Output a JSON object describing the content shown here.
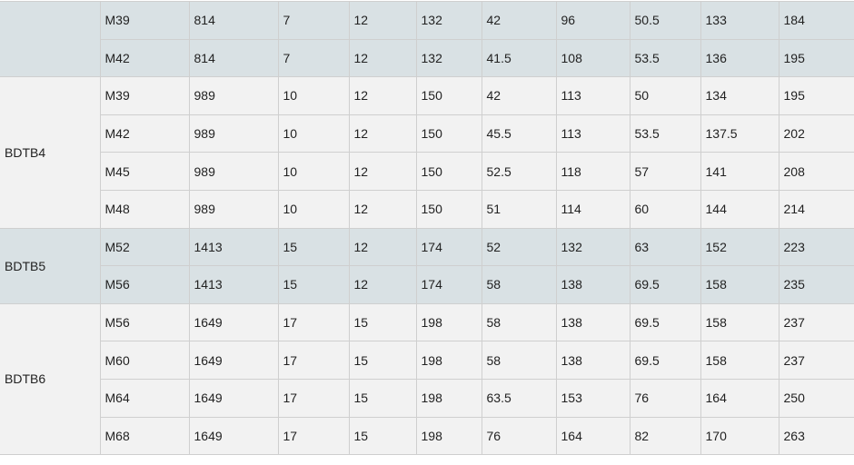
{
  "colors": {
    "shaded_row": "#d9e1e4",
    "light_row": "#f2f2f2",
    "border": "#cfcfcf"
  },
  "table": {
    "groups": [
      {
        "label": "",
        "shaded": true,
        "rows": [
          [
            "M39",
            "814",
            "7",
            "12",
            "132",
            "42",
            "96",
            "50.5",
            "133",
            "184"
          ],
          [
            "M42",
            "814",
            "7",
            "12",
            "132",
            "41.5",
            "108",
            "53.5",
            "136",
            "195"
          ]
        ]
      },
      {
        "label": "BDTB4",
        "shaded": false,
        "rows": [
          [
            "M39",
            "989",
            "10",
            "12",
            "150",
            "42",
            "113",
            "50",
            "134",
            "195"
          ],
          [
            "M42",
            "989",
            "10",
            "12",
            "150",
            "45.5",
            "113",
            "53.5",
            "137.5",
            "202"
          ],
          [
            "M45",
            "989",
            "10",
            "12",
            "150",
            "52.5",
            "118",
            "57",
            "141",
            "208"
          ],
          [
            "M48",
            "989",
            "10",
            "12",
            "150",
            "51",
            "114",
            "60",
            "144",
            "214"
          ]
        ]
      },
      {
        "label": "BDTB5",
        "shaded": true,
        "rows": [
          [
            "M52",
            "1413",
            "15",
            "12",
            "174",
            "52",
            "132",
            "63",
            "152",
            "223"
          ],
          [
            "M56",
            "1413",
            "15",
            "12",
            "174",
            "58",
            "138",
            "69.5",
            "158",
            "235"
          ]
        ]
      },
      {
        "label": "BDTB6",
        "shaded": false,
        "rows": [
          [
            "M56",
            "1649",
            "17",
            "15",
            "198",
            "58",
            "138",
            "69.5",
            "158",
            "237"
          ],
          [
            "M60",
            "1649",
            "17",
            "15",
            "198",
            "58",
            "138",
            "69.5",
            "158",
            "237"
          ],
          [
            "M64",
            "1649",
            "17",
            "15",
            "198",
            "63.5",
            "153",
            "76",
            "164",
            "250"
          ],
          [
            "M68",
            "1649",
            "17",
            "15",
            "198",
            "76",
            "164",
            "82",
            "170",
            "263"
          ]
        ]
      }
    ]
  }
}
